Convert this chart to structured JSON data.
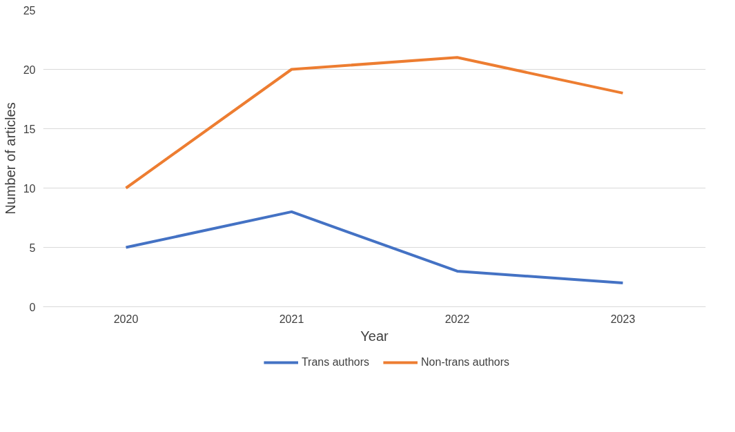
{
  "chart_data": {
    "type": "line",
    "xlabel": "Year",
    "ylabel": "Number of articles",
    "categories": [
      "2020",
      "2021",
      "2022",
      "2023"
    ],
    "series": [
      {
        "name": "Trans authors",
        "color": "#4472c4",
        "values": [
          5,
          8,
          3,
          2
        ]
      },
      {
        "name": "Non-trans authors",
        "color": "#ed7d31",
        "values": [
          10,
          20,
          21,
          18
        ]
      }
    ],
    "ylim": [
      0,
      25
    ],
    "yticks": [
      0,
      5,
      10,
      15,
      20,
      25
    ],
    "grid": "y",
    "legend": "bottom",
    "marker": "none",
    "line_style": "solid"
  }
}
